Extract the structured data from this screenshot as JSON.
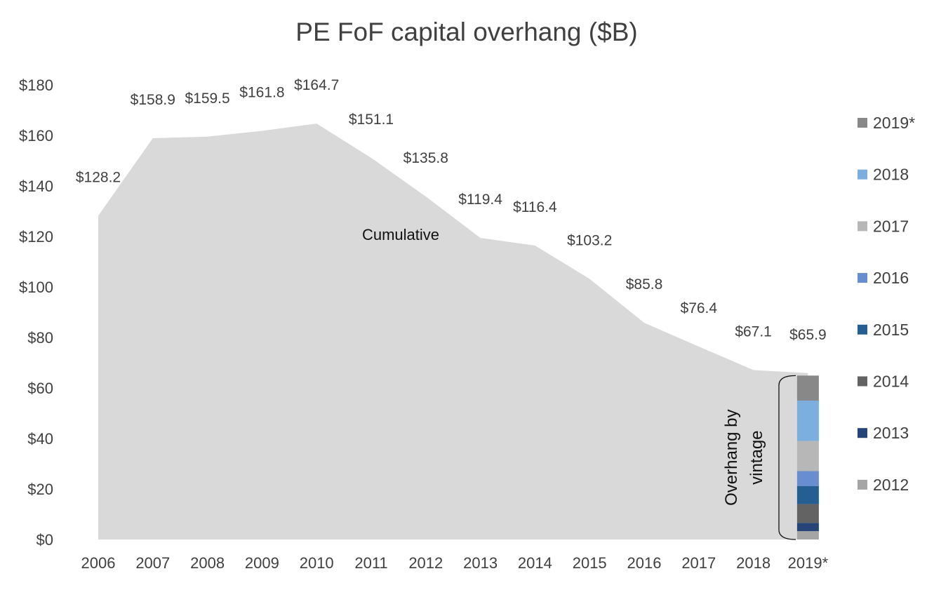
{
  "chart_data": {
    "type": "area",
    "title": "PE FoF capital overhang ($B)",
    "categories": [
      "2006",
      "2007",
      "2008",
      "2009",
      "2010",
      "2011",
      "2012",
      "2013",
      "2014",
      "2015",
      "2016",
      "2017",
      "2018",
      "2019*"
    ],
    "series": [
      {
        "name": "Cumulative",
        "values": [
          128.2,
          158.9,
          159.5,
          161.8,
          164.7,
          151.1,
          135.8,
          119.4,
          116.4,
          103.2,
          85.8,
          76.4,
          67.1,
          65.9
        ],
        "labels": [
          "$128.2",
          "$158.9",
          "$159.5",
          "$161.8",
          "$164.7",
          "$151.1",
          "$135.8",
          "$119.4",
          "$116.4",
          "$103.2",
          "$85.8",
          "$76.4",
          "$67.1",
          "$65.9"
        ],
        "color": "#d9d9d9"
      }
    ],
    "stacked_bar": {
      "category": "2019*",
      "segments": [
        {
          "name": "2012",
          "value": 3.3,
          "color": "#a5a5a5"
        },
        {
          "name": "2013",
          "value": 3.3,
          "color": "#264478"
        },
        {
          "name": "2014",
          "value": 7.4,
          "color": "#636363"
        },
        {
          "name": "2015",
          "value": 7.2,
          "color": "#255e91"
        },
        {
          "name": "2016",
          "value": 5.9,
          "color": "#698ed0"
        },
        {
          "name": "2017",
          "value": 11.9,
          "color": "#b7b7b7"
        },
        {
          "name": "2018",
          "value": 16.0,
          "color": "#7cafdd"
        },
        {
          "name": "2019*",
          "value": 9.9,
          "color": "#888888"
        }
      ]
    },
    "area_label": "Cumulative",
    "bracket_annotation": [
      "Overhang by",
      "vintage"
    ],
    "legend": {
      "position": "right",
      "entries": [
        "2019*",
        "2018",
        "2017",
        "2016",
        "2015",
        "2014",
        "2013",
        "2012"
      ]
    },
    "y_ticks": [
      "$0",
      "$20",
      "$40",
      "$60",
      "$80",
      "$100",
      "$120",
      "$140",
      "$160",
      "$180"
    ],
    "ylim": [
      0,
      180
    ],
    "grid": false
  }
}
